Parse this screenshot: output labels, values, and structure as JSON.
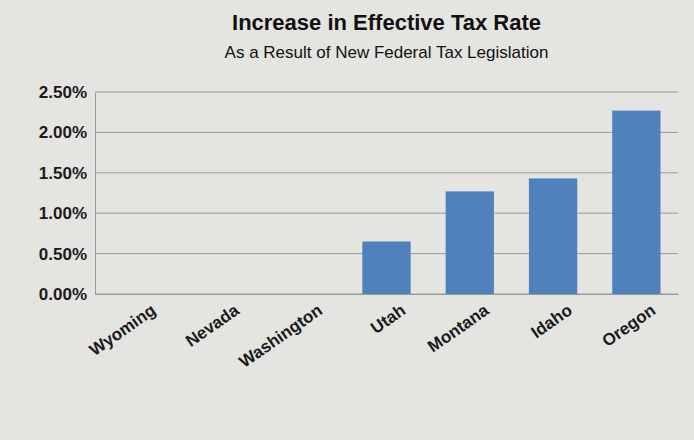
{
  "chart_data": {
    "type": "bar",
    "title": "Increase in Effective Tax Rate",
    "subtitle": "As a Result of New Federal Tax Legislation",
    "categories": [
      "Wyoming",
      "Nevada",
      "Washington",
      "Utah",
      "Montana",
      "Idaho",
      "Oregon"
    ],
    "values": [
      0,
      0,
      0,
      0.65,
      1.27,
      1.43,
      2.27
    ],
    "color": "#4f81bd",
    "ylim": [
      0,
      2.5
    ],
    "yticks": [
      {
        "value": 0,
        "label": "0.00%"
      },
      {
        "value": 0.5,
        "label": "0.50%"
      },
      {
        "value": 1,
        "label": "1.00%"
      },
      {
        "value": 1.5,
        "label": "1.50%"
      },
      {
        "value": 2,
        "label": "2.00%"
      },
      {
        "value": 2.5,
        "label": "2.50%"
      }
    ],
    "grid": true
  }
}
